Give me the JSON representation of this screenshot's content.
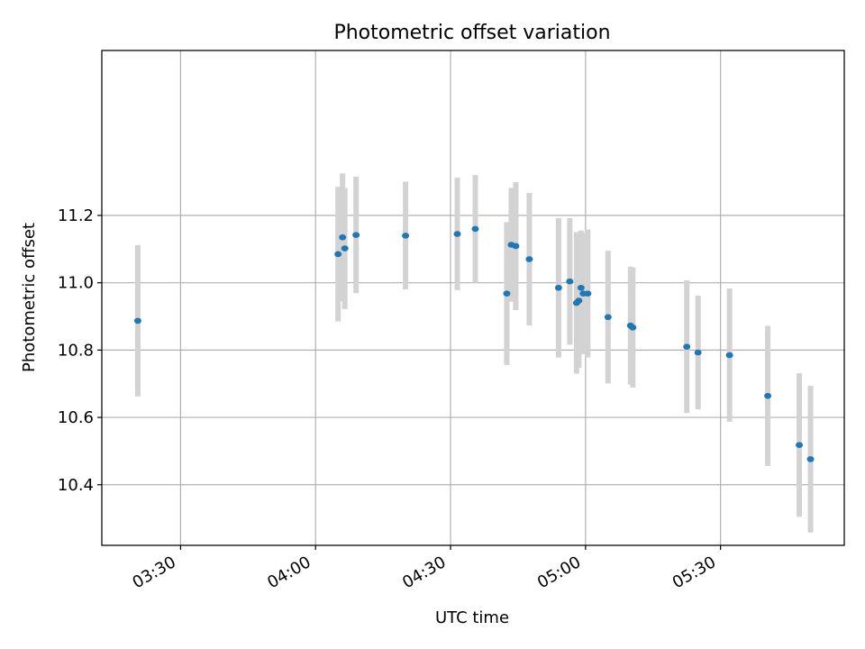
{
  "chart_data": {
    "type": "scatter",
    "title": "Photometric offset variation",
    "xlabel": "UTC time",
    "ylabel": "Photometric offset",
    "xlim": [
      "03:12:30",
      "05:57:30"
    ],
    "ylim": [
      10.22,
      11.69
    ],
    "grid": true,
    "x_ticks": [
      "03:30",
      "04:00",
      "04:30",
      "05:00",
      "05:30"
    ],
    "y_ticks": [
      10.4,
      10.6,
      10.8,
      11.0,
      11.2
    ],
    "y_tick_labels": [
      "10.4",
      "10.6",
      "10.8",
      "11.0",
      "11.2"
    ],
    "errorbar_color": "#d3d3d3",
    "point_color": "#1f77b4",
    "points": [
      {
        "x": "03:20:30",
        "y": 10.887,
        "yerr": 0.225
      },
      {
        "x": "04:05:00",
        "y": 11.085,
        "yerr": 0.2
      },
      {
        "x": "04:06:00",
        "y": 11.135,
        "yerr": 0.19
      },
      {
        "x": "04:06:30",
        "y": 11.102,
        "yerr": 0.18
      },
      {
        "x": "04:09:00",
        "y": 11.142,
        "yerr": 0.173
      },
      {
        "x": "04:20:00",
        "y": 11.14,
        "yerr": 0.16
      },
      {
        "x": "04:31:30",
        "y": 11.145,
        "yerr": 0.167
      },
      {
        "x": "04:35:30",
        "y": 11.16,
        "yerr": 0.16
      },
      {
        "x": "04:42:30",
        "y": 10.968,
        "yerr": 0.212
      },
      {
        "x": "04:43:30",
        "y": 11.113,
        "yerr": 0.169
      },
      {
        "x": "04:44:30",
        "y": 11.109,
        "yerr": 0.19
      },
      {
        "x": "04:47:30",
        "y": 11.07,
        "yerr": 0.197
      },
      {
        "x": "04:54:00",
        "y": 10.985,
        "yerr": 0.207
      },
      {
        "x": "04:56:30",
        "y": 11.004,
        "yerr": 0.188
      },
      {
        "x": "04:58:00",
        "y": 10.94,
        "yerr": 0.21
      },
      {
        "x": "04:58:30",
        "y": 10.947,
        "yerr": 0.2
      },
      {
        "x": "04:59:00",
        "y": 10.985,
        "yerr": 0.17
      },
      {
        "x": "04:59:30",
        "y": 10.968,
        "yerr": 0.18
      },
      {
        "x": "05:00:30",
        "y": 10.968,
        "yerr": 0.19
      },
      {
        "x": "05:05:00",
        "y": 10.898,
        "yerr": 0.197
      },
      {
        "x": "05:10:00",
        "y": 10.873,
        "yerr": 0.175
      },
      {
        "x": "05:10:30",
        "y": 10.867,
        "yerr": 0.178
      },
      {
        "x": "05:22:30",
        "y": 10.81,
        "yerr": 0.197
      },
      {
        "x": "05:25:00",
        "y": 10.793,
        "yerr": 0.169
      },
      {
        "x": "05:32:00",
        "y": 10.785,
        "yerr": 0.198
      },
      {
        "x": "05:40:30",
        "y": 10.664,
        "yerr": 0.208
      },
      {
        "x": "05:47:30",
        "y": 10.518,
        "yerr": 0.213
      },
      {
        "x": "05:50:00",
        "y": 10.476,
        "yerr": 0.218
      }
    ]
  }
}
